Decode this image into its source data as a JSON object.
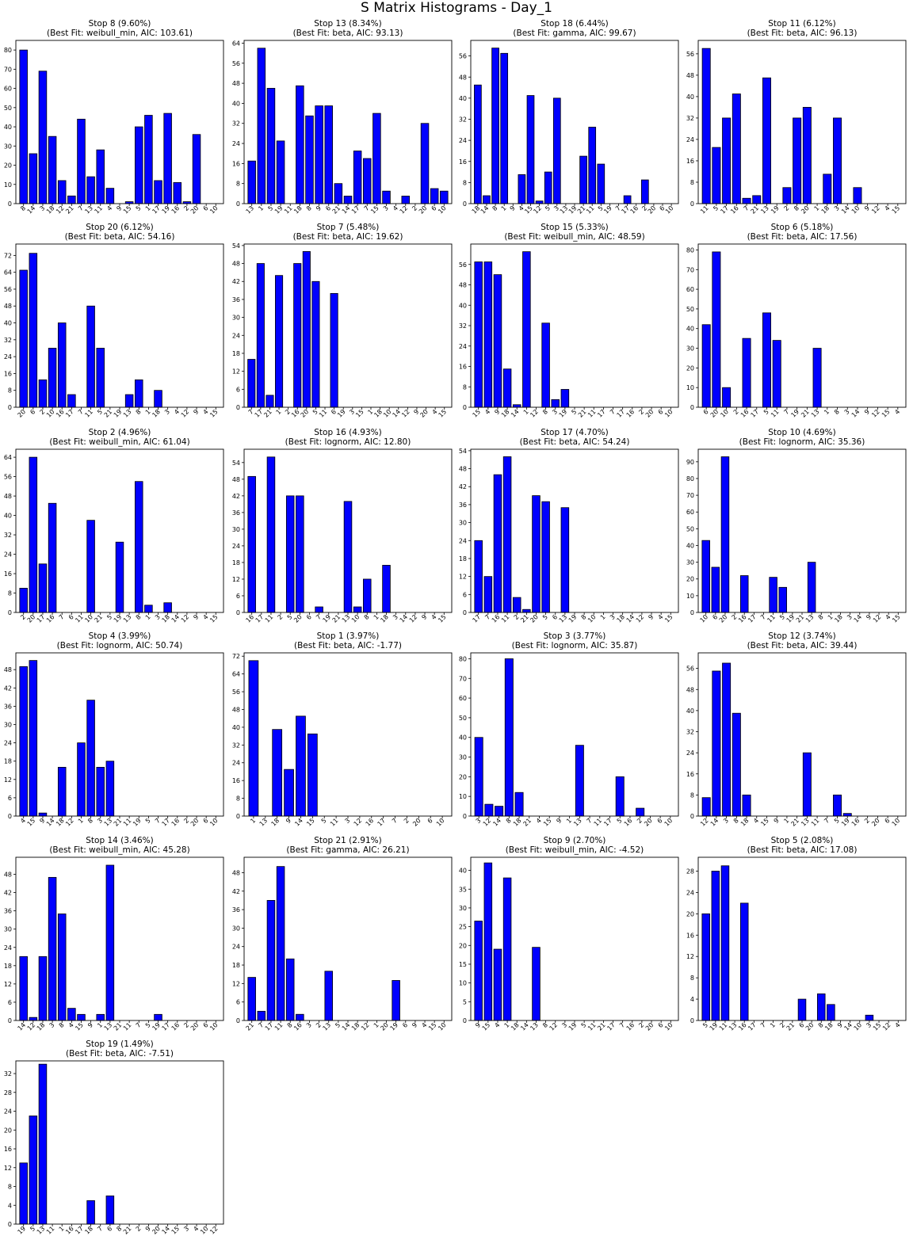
{
  "figure": {
    "title": "S Matrix Histograms - Day_1"
  },
  "chart_data": [
    {
      "type": "bar",
      "title": "Stop 8 (9.60%)\n(Best Fit: weibull_min, AIC: 103.61)",
      "categories": [
        "8",
        "14",
        "3",
        "18",
        "12",
        "21",
        "7",
        "13",
        "11",
        "4",
        "9",
        "15",
        "5",
        "1",
        "17",
        "19",
        "16",
        "2",
        "20",
        "6",
        "10"
      ],
      "values": [
        80,
        26,
        69,
        35,
        12,
        4,
        44,
        14,
        28,
        8,
        0,
        1,
        40,
        46,
        12,
        47,
        11,
        1,
        36,
        0,
        0
      ],
      "yticks": [
        0,
        10,
        20,
        30,
        40,
        50,
        60,
        70,
        80
      ],
      "ylim": [
        0,
        85.0
      ],
      "colors": {
        "bar": "#0000ff",
        "edge": "#000000"
      }
    },
    {
      "type": "bar",
      "title": "Stop 13 (8.34%)\n(Best Fit: beta, AIC: 93.13)",
      "categories": [
        "13",
        "1",
        "5",
        "19",
        "11",
        "18",
        "8",
        "9",
        "6",
        "21",
        "14",
        "17",
        "7",
        "15",
        "3",
        "4",
        "12",
        "2",
        "20",
        "6",
        "10"
      ],
      "values": [
        17,
        62,
        46,
        25,
        0,
        47,
        35,
        39,
        39,
        8,
        3,
        21,
        18,
        36,
        5,
        0,
        3,
        0,
        32,
        6,
        5
      ],
      "yticks": [
        0,
        8,
        16,
        24,
        32,
        40,
        48,
        56,
        64
      ],
      "ylim": [
        0,
        65.1
      ],
      "colors": {
        "bar": "#0000ff",
        "edge": "#000000"
      }
    },
    {
      "type": "bar",
      "title": "Stop 18 (6.44%)\n(Best Fit: gamma, AIC: 99.67)",
      "categories": [
        "18",
        "14",
        "8",
        "1",
        "9",
        "4",
        "15",
        "12",
        "5",
        "3",
        "13",
        "19",
        "21",
        "11",
        "5",
        "19",
        "7",
        "17",
        "16",
        "2",
        "20",
        "6",
        "10"
      ],
      "values": [
        45,
        3,
        59,
        57,
        0,
        11,
        41,
        1,
        12,
        40,
        0,
        0,
        18,
        29,
        15,
        0,
        0,
        3,
        0,
        9,
        0,
        0,
        0
      ],
      "yticks": [
        0,
        8,
        16,
        24,
        32,
        40,
        48,
        56
      ],
      "ylim": [
        0,
        61.9
      ],
      "colors": {
        "bar": "#0000ff",
        "edge": "#000000"
      }
    },
    {
      "type": "bar",
      "title": "Stop 11 (6.12%)\n(Best Fit: beta, AIC: 96.13)",
      "categories": [
        "11",
        "5",
        "17",
        "16",
        "7",
        "21",
        "13",
        "19",
        "2",
        "8",
        "20",
        "1",
        "18",
        "3",
        "14",
        "10",
        "9",
        "12",
        "4",
        "15"
      ],
      "values": [
        58,
        21,
        32,
        41,
        2,
        3,
        47,
        0,
        6,
        32,
        36,
        0,
        11,
        32,
        0,
        6,
        0,
        0,
        0,
        0
      ],
      "yticks": [
        0,
        8,
        16,
        24,
        32,
        40,
        48,
        56
      ],
      "ylim": [
        0,
        61.0
      ],
      "colors": {
        "bar": "#0000ff",
        "edge": "#000000"
      }
    },
    {
      "type": "bar",
      "title": "Stop 20 (6.12%)\n(Best Fit: beta, AIC: 54.16)",
      "categories": [
        "20",
        "6",
        "2",
        "10",
        "16",
        "17",
        "7",
        "11",
        "5",
        "21",
        "19",
        "13",
        "8",
        "1",
        "18",
        "3",
        "4",
        "12",
        "9",
        "4",
        "15"
      ],
      "values": [
        65,
        73,
        13,
        28,
        40,
        6,
        0,
        48,
        28,
        0,
        0,
        6,
        13,
        0,
        8,
        0,
        0,
        0,
        0,
        0,
        0
      ],
      "yticks": [
        0,
        8,
        16,
        24,
        32,
        40,
        48,
        56,
        64,
        72
      ],
      "ylim": [
        0,
        77.4
      ],
      "colors": {
        "bar": "#0000ff",
        "edge": "#000000"
      }
    },
    {
      "type": "bar",
      "title": "Stop 7 (5.48%)\n(Best Fit: beta, AIC: 19.62)",
      "categories": [
        "7",
        "17",
        "21",
        "1",
        "2",
        "16",
        "20",
        "5",
        "11",
        "6",
        "19",
        "3",
        "15",
        "1",
        "18",
        "10",
        "14",
        "12",
        "9",
        "20",
        "4",
        "15"
      ],
      "values": [
        16,
        48,
        4,
        44,
        0,
        48,
        52,
        42,
        0,
        38,
        0,
        0,
        0,
        0,
        0,
        0,
        0,
        0,
        0,
        0,
        0,
        0
      ],
      "yticks": [
        0,
        6,
        12,
        18,
        24,
        30,
        36,
        42,
        48,
        54
      ],
      "ylim": [
        0,
        54.5
      ],
      "colors": {
        "bar": "#0000ff",
        "edge": "#000000"
      }
    },
    {
      "type": "bar",
      "title": "Stop 15 (5.33%)\n(Best Fit: weibull_min, AIC: 48.59)",
      "categories": [
        "15",
        "4",
        "9",
        "18",
        "14",
        "1",
        "12",
        "8",
        "3",
        "19",
        "5",
        "21",
        "11",
        "17",
        "7",
        "17",
        "16",
        "2",
        "20",
        "6",
        "10"
      ],
      "values": [
        57,
        57,
        52,
        15,
        1,
        61,
        0,
        33,
        3,
        7,
        0,
        0,
        0,
        0,
        0,
        0,
        0,
        0,
        0,
        0,
        0
      ],
      "yticks": [
        0,
        8,
        16,
        24,
        32,
        40,
        48,
        56
      ],
      "ylim": [
        0,
        64.0
      ],
      "colors": {
        "bar": "#0000ff",
        "edge": "#000000"
      }
    },
    {
      "type": "bar",
      "title": "Stop 6 (5.18%)\n(Best Fit: beta, AIC: 17.56)",
      "categories": [
        "6",
        "20",
        "10",
        "2",
        "16",
        "17",
        "5",
        "11",
        "7",
        "19",
        "21",
        "13",
        "1",
        "8",
        "3",
        "14",
        "9",
        "12",
        "15",
        "4"
      ],
      "values": [
        42,
        79,
        10,
        0,
        35,
        0,
        48,
        34,
        0,
        0,
        0,
        30,
        0,
        0,
        0,
        0,
        0,
        0,
        0,
        0
      ],
      "yticks": [
        0,
        10,
        20,
        30,
        40,
        50,
        60,
        70,
        80
      ],
      "ylim": [
        0,
        83.0
      ],
      "colors": {
        "bar": "#0000ff",
        "edge": "#000000"
      }
    },
    {
      "type": "bar",
      "title": "Stop 2 (4.96%)\n(Best Fit: weibull_min, AIC: 61.04)",
      "categories": [
        "2",
        "20",
        "17",
        "16",
        "7",
        "6",
        "11",
        "10",
        "21",
        "5",
        "19",
        "13",
        "8",
        "1",
        "3",
        "18",
        "14",
        "12",
        "9",
        "4",
        "15"
      ],
      "values": [
        10,
        64,
        20,
        45,
        0,
        0,
        0,
        38,
        0,
        0,
        29,
        0,
        54,
        3,
        0,
        4,
        0,
        0,
        0,
        0,
        0
      ],
      "yticks": [
        0,
        8,
        16,
        24,
        32,
        40,
        48,
        56,
        64
      ],
      "ylim": [
        0,
        67.3
      ],
      "colors": {
        "bar": "#0000ff",
        "edge": "#000000"
      }
    },
    {
      "type": "bar",
      "title": "Stop 16 (4.93%)\n(Best Fit: lognorm, AIC: 12.80)",
      "categories": [
        "16",
        "17",
        "11",
        "2",
        "5",
        "20",
        "6",
        "7",
        "19",
        "21",
        "13",
        "10",
        "8",
        "1",
        "18",
        "3",
        "14",
        "12",
        "9",
        "4",
        "15"
      ],
      "values": [
        49,
        0,
        56,
        0,
        42,
        42,
        0,
        2,
        0,
        0,
        40,
        2,
        12,
        0,
        17,
        0,
        0,
        0,
        0,
        0,
        0
      ],
      "yticks": [
        0,
        6,
        12,
        18,
        24,
        30,
        36,
        42,
        48,
        54
      ],
      "ylim": [
        0,
        58.8
      ],
      "colors": {
        "bar": "#0000ff",
        "edge": "#000000"
      }
    },
    {
      "type": "bar",
      "title": "Stop 17 (4.70%)\n(Best Fit: beta, AIC: 54.24)",
      "categories": [
        "17",
        "7",
        "16",
        "11",
        "2",
        "21",
        "20",
        "5",
        "6",
        "13",
        "19",
        "8",
        "10",
        "1",
        "3",
        "18",
        "14",
        "12",
        "9",
        "4",
        "15"
      ],
      "values": [
        24,
        12,
        46,
        52,
        5,
        1,
        39,
        37,
        0,
        35,
        0,
        0,
        0,
        0,
        0,
        0,
        0,
        0,
        0,
        0,
        0
      ],
      "yticks": [
        0,
        6,
        12,
        18,
        24,
        30,
        36,
        42,
        48,
        54
      ],
      "ylim": [
        0,
        54.5
      ],
      "colors": {
        "bar": "#0000ff",
        "edge": "#000000"
      }
    },
    {
      "type": "bar",
      "title": "Stop 10 (4.69%)\n(Best Fit: lognorm, AIC: 35.36)",
      "categories": [
        "10",
        "6",
        "20",
        "2",
        "16",
        "17",
        "7",
        "11",
        "5",
        "19",
        "21",
        "13",
        "8",
        "1",
        "18",
        "3",
        "14",
        "9",
        "12",
        "4",
        "15"
      ],
      "values": [
        43,
        27,
        93,
        0,
        22,
        0,
        0,
        21,
        15,
        0,
        0,
        30,
        0,
        0,
        0,
        0,
        0,
        0,
        0,
        0,
        0
      ],
      "yticks": [
        0,
        10,
        20,
        30,
        40,
        50,
        60,
        70,
        80,
        90
      ],
      "ylim": [
        0,
        97.5
      ],
      "colors": {
        "bar": "#0000ff",
        "edge": "#000000"
      }
    },
    {
      "type": "bar",
      "title": "Stop 4 (3.99%)\n(Best Fit: lognorm, AIC: 50.74)",
      "categories": [
        "4",
        "15",
        "9",
        "14",
        "18",
        "12",
        "1",
        "8",
        "3",
        "13",
        "21",
        "11",
        "19",
        "5",
        "7",
        "17",
        "16",
        "2",
        "20",
        "6",
        "10"
      ],
      "values": [
        49,
        51,
        1,
        0,
        16,
        0,
        24,
        38,
        16,
        18,
        0,
        0,
        0,
        0,
        0,
        0,
        0,
        0,
        0,
        0,
        0
      ],
      "yticks": [
        0,
        6,
        12,
        18,
        24,
        30,
        36,
        42,
        48
      ],
      "ylim": [
        0,
        53.5
      ],
      "colors": {
        "bar": "#0000ff",
        "edge": "#000000"
      }
    },
    {
      "type": "bar",
      "title": "Stop 1 (3.97%)\n(Best Fit: beta, AIC: -1.77)",
      "categories": [
        "1",
        "13",
        "18",
        "9",
        "14",
        "15",
        "5",
        "11",
        "3",
        "12",
        "16",
        "17",
        "7",
        "2",
        "20",
        "6",
        "10"
      ],
      "values": [
        70,
        0,
        39,
        21,
        45,
        37,
        0,
        0,
        0,
        0,
        0,
        0,
        0,
        0,
        0,
        0,
        0
      ],
      "yticks": [
        0,
        8,
        16,
        24,
        32,
        40,
        48,
        56,
        64,
        72
      ],
      "ylim": [
        0,
        73.5
      ],
      "colors": {
        "bar": "#0000ff",
        "edge": "#000000"
      }
    },
    {
      "type": "bar",
      "title": "Stop 3 (3.77%)\n(Best Fit: lognorm, AIC: 35.87)",
      "categories": [
        "3",
        "12",
        "14",
        "8",
        "18",
        "21",
        "4",
        "15",
        "9",
        "1",
        "13",
        "7",
        "11",
        "17",
        "5",
        "16",
        "2",
        "20",
        "6",
        "10"
      ],
      "values": [
        40,
        6,
        5,
        80,
        12,
        0,
        0,
        0,
        0,
        0,
        36,
        0,
        0,
        0,
        20,
        0,
        4,
        0,
        0,
        0
      ],
      "yticks": [
        0,
        10,
        20,
        30,
        40,
        50,
        60,
        70,
        80
      ],
      "ylim": [
        0,
        83.0
      ],
      "colors": {
        "bar": "#0000ff",
        "edge": "#000000"
      }
    },
    {
      "type": "bar",
      "title": "Stop 12 (3.74%)\n(Best Fit: beta, AIC: 39.44)",
      "categories": [
        "12",
        "14",
        "3",
        "8",
        "18",
        "4",
        "15",
        "9",
        "1",
        "21",
        "13",
        "11",
        "7",
        "5",
        "19",
        "16",
        "2",
        "20",
        "6",
        "10"
      ],
      "values": [
        7,
        55,
        58,
        39,
        8,
        0,
        0,
        0,
        0,
        0,
        24,
        0,
        0,
        8,
        1,
        0,
        0,
        0,
        0,
        0
      ],
      "yticks": [
        0,
        8,
        16,
        24,
        32,
        40,
        48,
        56
      ],
      "ylim": [
        0,
        61.9
      ],
      "colors": {
        "bar": "#0000ff",
        "edge": "#000000"
      }
    },
    {
      "type": "bar",
      "title": "Stop 14 (3.46%)\n(Best Fit: weibull_min, AIC: 45.28)",
      "categories": [
        "14",
        "12",
        "18",
        "3",
        "8",
        "4",
        "15",
        "9",
        "1",
        "13",
        "21",
        "11",
        "7",
        "5",
        "19",
        "17",
        "16",
        "2",
        "20",
        "6",
        "10"
      ],
      "values": [
        21,
        1,
        21,
        47,
        35,
        4,
        2,
        0,
        2,
        51,
        0,
        0,
        0,
        0,
        2,
        0,
        0,
        0,
        0,
        0,
        0
      ],
      "yticks": [
        0,
        6,
        12,
        18,
        24,
        30,
        36,
        42,
        48
      ],
      "ylim": [
        0,
        53.6
      ],
      "colors": {
        "bar": "#0000ff",
        "edge": "#000000"
      }
    },
    {
      "type": "bar",
      "title": "Stop 21 (2.91%)\n(Best Fit: gamma, AIC: 26.21)",
      "categories": [
        "21",
        "7",
        "17",
        "11",
        "8",
        "16",
        "3",
        "2",
        "13",
        "5",
        "14",
        "18",
        "12",
        "1",
        "20",
        "19",
        "6",
        "9",
        "4",
        "15",
        "10"
      ],
      "values": [
        14,
        3,
        39,
        50,
        20,
        2,
        0,
        0,
        16,
        0,
        0,
        0,
        0,
        0,
        0,
        13,
        0,
        0,
        0,
        0,
        0
      ],
      "yticks": [
        0,
        6,
        12,
        18,
        24,
        30,
        36,
        42,
        48
      ],
      "ylim": [
        0,
        53.0
      ],
      "colors": {
        "bar": "#0000ff",
        "edge": "#000000"
      }
    },
    {
      "type": "bar",
      "title": "Stop 9 (2.70%)\n(Best Fit: weibull_min, AIC: -4.52)",
      "categories": [
        "9",
        "15",
        "4",
        "1",
        "18",
        "14",
        "13",
        "8",
        "12",
        "3",
        "19",
        "5",
        "11",
        "21",
        "17",
        "7",
        "16",
        "2",
        "20",
        "6",
        "10"
      ],
      "values": [
        26.5,
        42,
        19,
        38,
        0,
        0,
        19.5,
        0,
        0,
        0,
        0,
        0,
        0,
        0,
        0,
        0,
        0,
        0,
        0,
        0,
        0
      ],
      "yticks": [
        0,
        5,
        10,
        15,
        20,
        25,
        30,
        35,
        40
      ],
      "ylim": [
        0,
        43.5
      ],
      "colors": {
        "bar": "#0000ff",
        "edge": "#000000"
      }
    },
    {
      "type": "bar",
      "title": "Stop 5 (2.08%)\n(Best Fit: beta, AIC: 17.08)",
      "categories": [
        "5",
        "19",
        "11",
        "13",
        "16",
        "17",
        "7",
        "1",
        "2",
        "21",
        "6",
        "20",
        "8",
        "18",
        "9",
        "14",
        "10",
        "3",
        "15",
        "12",
        "4"
      ],
      "values": [
        20,
        28,
        29,
        0,
        22,
        0,
        0,
        0,
        0,
        0,
        4,
        0,
        5,
        3,
        0,
        0,
        0,
        1,
        0,
        0,
        0
      ],
      "yticks": [
        0,
        4,
        8,
        12,
        16,
        20,
        24,
        28
      ],
      "ylim": [
        0,
        30.6
      ],
      "colors": {
        "bar": "#0000ff",
        "edge": "#000000"
      }
    },
    {
      "type": "bar",
      "title": "Stop 19 (1.49%)\n(Best Fit: beta, AIC: -7.51)",
      "categories": [
        "19",
        "5",
        "13",
        "11",
        "1",
        "16",
        "17",
        "18",
        "7",
        "6",
        "8",
        "21",
        "2",
        "9",
        "20",
        "14",
        "15",
        "3",
        "4",
        "10",
        "12"
      ],
      "values": [
        13,
        23,
        34,
        0,
        0,
        0,
        0,
        5,
        0,
        6,
        0,
        0,
        0,
        0,
        0,
        0,
        0,
        0,
        0,
        0,
        0
      ],
      "yticks": [
        0,
        4,
        8,
        12,
        16,
        20,
        24,
        28,
        32
      ],
      "ylim": [
        0,
        34.7
      ],
      "colors": {
        "bar": "#0000ff",
        "edge": "#000000"
      }
    }
  ]
}
